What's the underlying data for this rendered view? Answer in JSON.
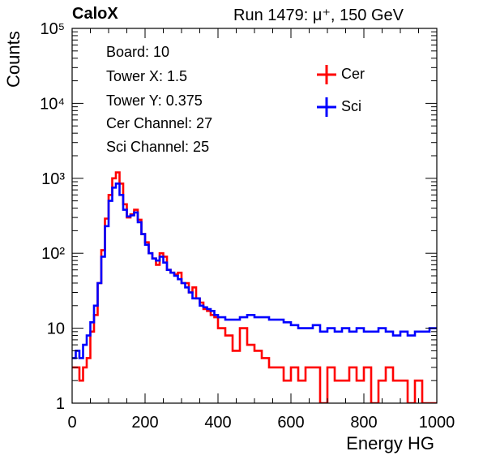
{
  "header": {
    "brand": "CaloX",
    "run_info": "Run 1479:   μ⁺, 150 GeV"
  },
  "info_box": {
    "lines": [
      "Board: 10",
      "Tower X: 1.5",
      "Tower Y: 0.375",
      "Cer Channel: 27",
      "Sci Channel: 25"
    ]
  },
  "colors": {
    "Cer": "#ff0000",
    "Sci": "#0000ff"
  },
  "chart_data": {
    "type": "line",
    "style": "step-histogram",
    "xlabel": "Energy HG",
    "ylabel": "Counts",
    "xlim": [
      0,
      1000
    ],
    "ylim": [
      1,
      100000
    ],
    "yscale": "log",
    "x_ticks": [
      "0",
      "200",
      "400",
      "600",
      "800",
      "1000"
    ],
    "y_ticks": [
      {
        "value": 1,
        "label": "1"
      },
      {
        "value": 10,
        "label": "10"
      },
      {
        "value": 100,
        "label": "10²"
      },
      {
        "value": 1000,
        "label": "10³"
      },
      {
        "value": 10000,
        "label": "10⁴"
      },
      {
        "value": 100000,
        "label": "10⁵"
      }
    ],
    "legend": {
      "position": "top-right",
      "entries": [
        "Cer",
        "Sci"
      ]
    },
    "series": [
      {
        "name": "Cer",
        "x": [
          0,
          10,
          20,
          30,
          40,
          50,
          60,
          70,
          80,
          90,
          100,
          110,
          120,
          130,
          140,
          150,
          160,
          170,
          180,
          190,
          200,
          210,
          220,
          230,
          240,
          250,
          260,
          270,
          280,
          290,
          300,
          310,
          320,
          330,
          340,
          350,
          360,
          370,
          380,
          390,
          400,
          420,
          440,
          460,
          480,
          500,
          520,
          540,
          560,
          580,
          600,
          620,
          640,
          660,
          680,
          700,
          720,
          740,
          760,
          780,
          800,
          820,
          840,
          860,
          880,
          900,
          920,
          940,
          960,
          980,
          1000
        ],
        "y": [
          3,
          3,
          2,
          3,
          4,
          9,
          15,
          40,
          110,
          290,
          600,
          1000,
          1200,
          850,
          450,
          300,
          330,
          380,
          280,
          180,
          140,
          100,
          85,
          70,
          100,
          90,
          60,
          55,
          52,
          55,
          40,
          40,
          30,
          35,
          25,
          22,
          18,
          17,
          15,
          14,
          10,
          8,
          5,
          10,
          6,
          5,
          4,
          3,
          3,
          2,
          3,
          2,
          3,
          3,
          1,
          3,
          2,
          2,
          3,
          2,
          3,
          1,
          2,
          3,
          2,
          2,
          1,
          2,
          1,
          1,
          1
        ]
      },
      {
        "name": "Sci",
        "x": [
          0,
          10,
          20,
          30,
          40,
          50,
          60,
          70,
          80,
          90,
          100,
          110,
          120,
          130,
          140,
          150,
          160,
          170,
          180,
          190,
          200,
          210,
          220,
          230,
          240,
          250,
          260,
          270,
          280,
          290,
          300,
          310,
          320,
          330,
          340,
          350,
          360,
          370,
          380,
          390,
          400,
          420,
          440,
          460,
          480,
          500,
          520,
          540,
          560,
          580,
          600,
          620,
          640,
          660,
          680,
          700,
          720,
          740,
          760,
          780,
          800,
          820,
          840,
          860,
          880,
          900,
          920,
          940,
          960,
          980,
          1000
        ],
        "y": [
          4,
          5,
          4,
          6,
          8,
          12,
          20,
          40,
          90,
          230,
          500,
          750,
          850,
          600,
          380,
          310,
          320,
          350,
          260,
          180,
          130,
          100,
          85,
          80,
          90,
          75,
          60,
          55,
          50,
          45,
          40,
          35,
          30,
          25,
          25,
          20,
          19,
          18,
          17,
          15,
          14,
          13,
          13,
          14,
          15,
          14,
          14,
          13,
          13,
          12,
          11,
          10,
          10,
          11,
          9,
          10,
          9,
          10,
          9,
          10,
          9,
          9,
          10,
          9,
          8,
          9,
          8,
          9,
          9,
          10,
          10
        ]
      }
    ]
  }
}
